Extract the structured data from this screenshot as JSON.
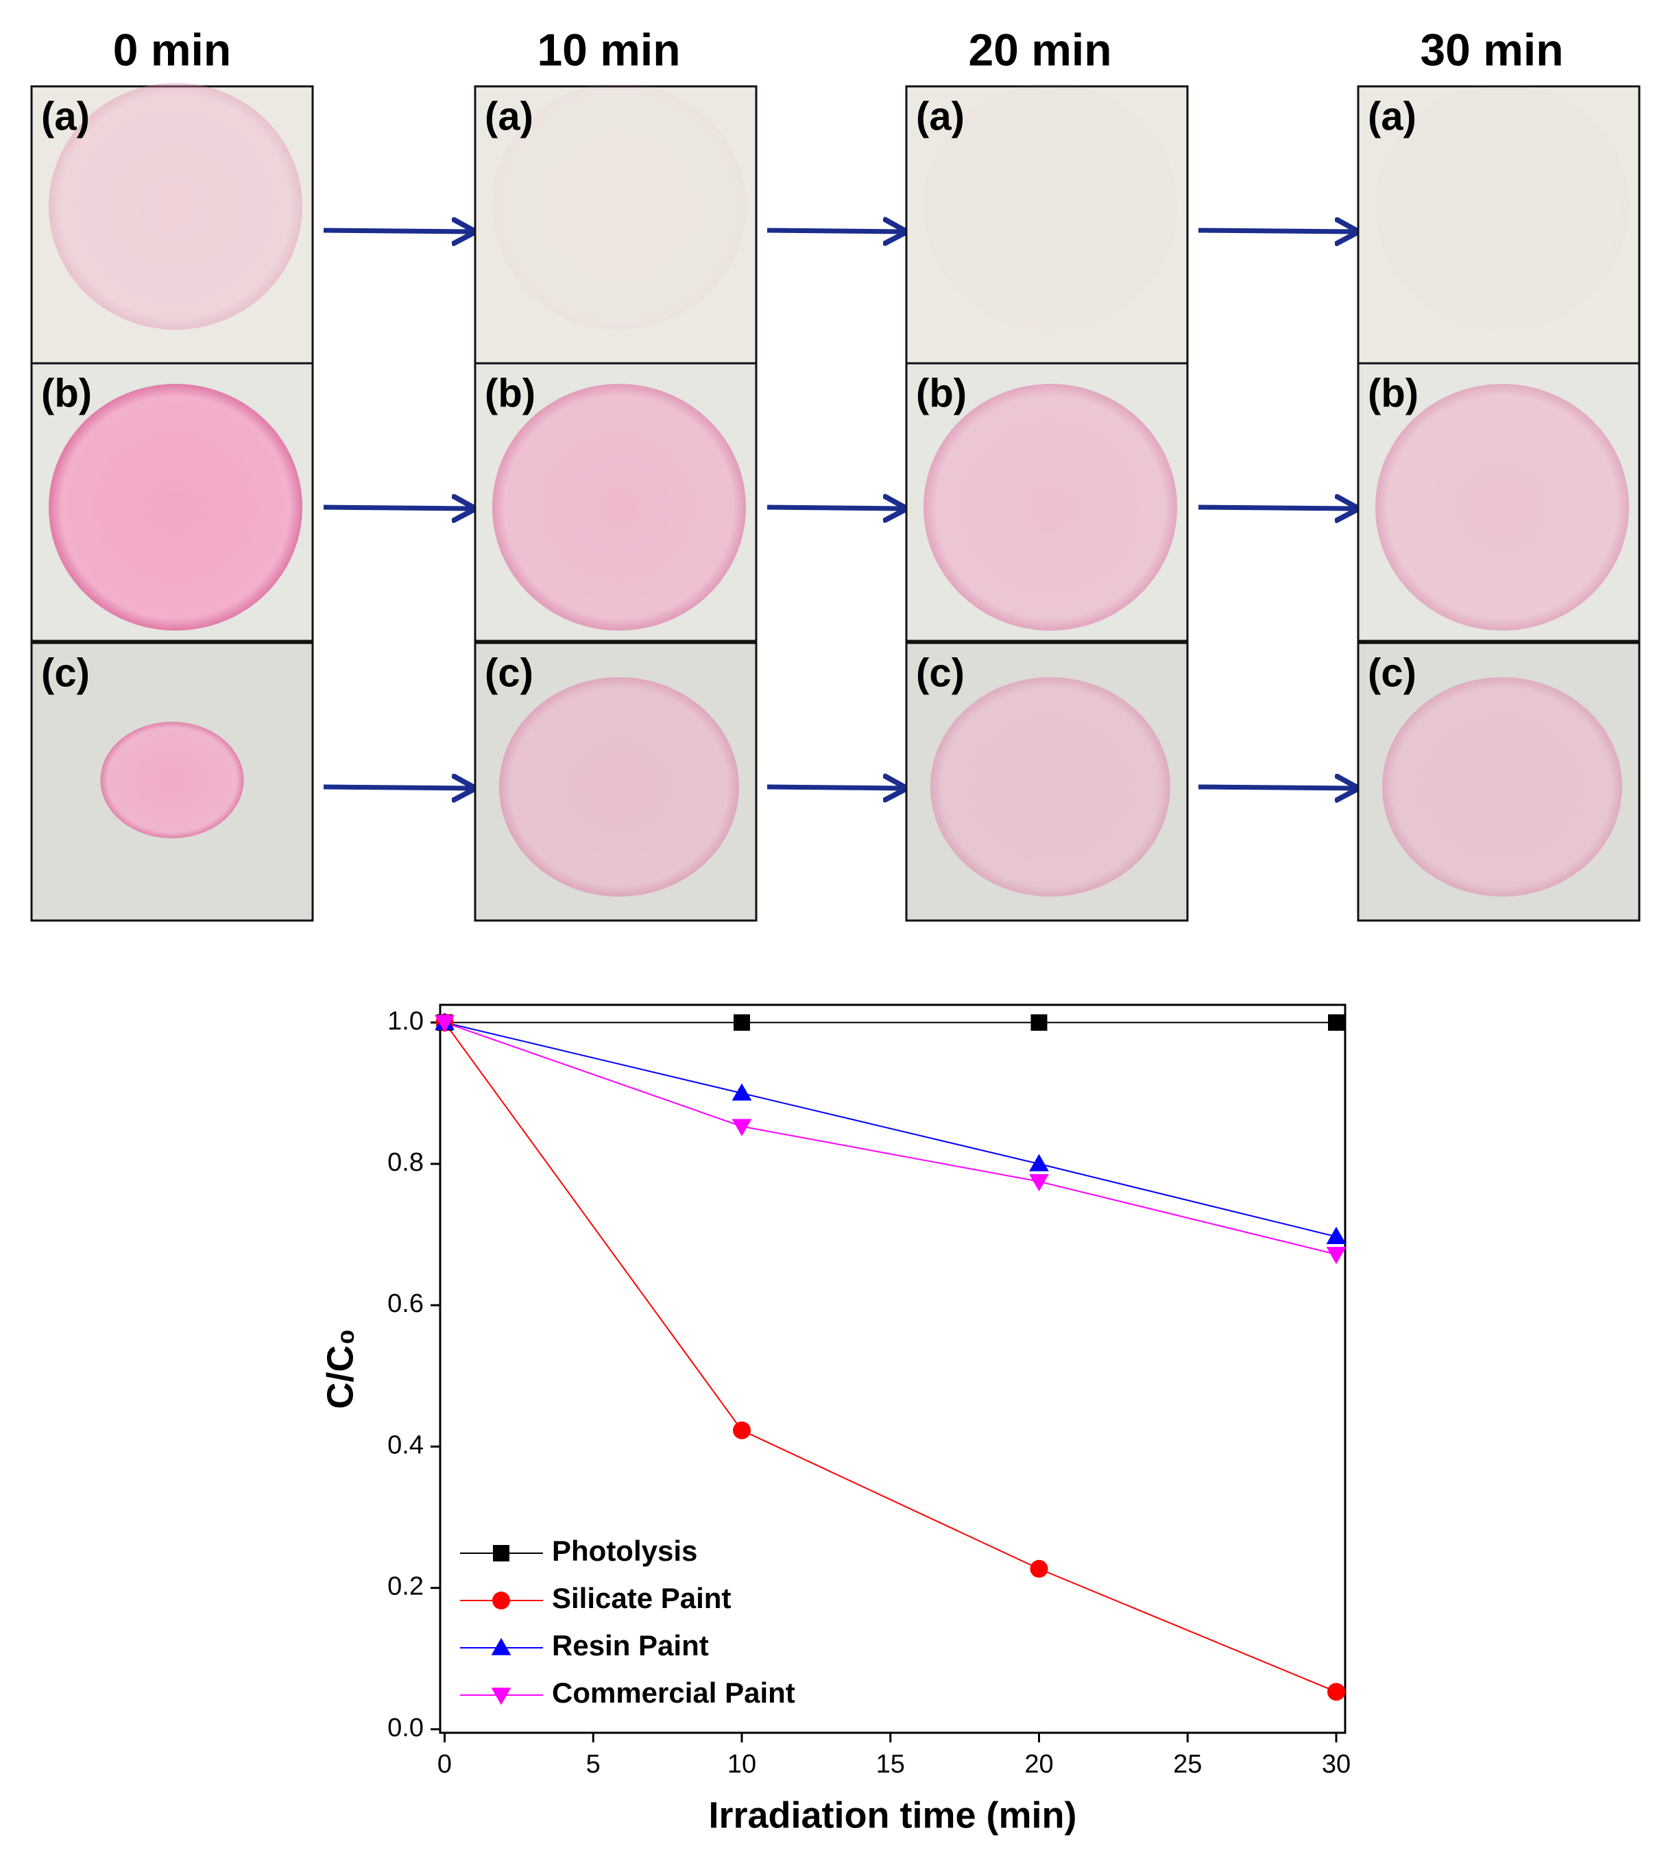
{
  "photo_grid": {
    "columns": [
      "0 min",
      "10 min",
      "20 min",
      "30 min"
    ],
    "rows": [
      "(a)",
      "(b)",
      "(c)"
    ]
  },
  "chart_data": {
    "type": "line",
    "xlabel": "Irradiation time (min)",
    "ylabel": "C/C₀",
    "x": [
      0,
      10,
      20,
      30
    ],
    "series": [
      {
        "name": "Photolysis",
        "color": "#000000",
        "marker": "square",
        "values": [
          1.0,
          1.0,
          1.0,
          1.0
        ]
      },
      {
        "name": "Silicate Paint",
        "color": "#ff0000",
        "marker": "circle",
        "values": [
          1.0,
          0.423,
          0.227,
          0.053
        ]
      },
      {
        "name": "Resin Paint",
        "color": "#0000ff",
        "marker": "triangle-up",
        "values": [
          1.0,
          0.9,
          0.8,
          0.697
        ]
      },
      {
        "name": "Commercial Paint",
        "color": "#ff00ff",
        "marker": "triangle-down",
        "values": [
          1.0,
          0.853,
          0.775,
          0.672
        ]
      }
    ],
    "xlim": [
      -0.15,
      30.3
    ],
    "ylim": [
      -0.005,
      1.025
    ],
    "xticks": [
      0,
      5,
      10,
      15,
      20,
      25,
      30
    ],
    "yticks": [
      {
        "value": 0,
        "label": "0.0"
      },
      0.2,
      0.4,
      0.6,
      0.8,
      {
        "value": 1,
        "label": "1.0"
      }
    ],
    "legend": "lower-left"
  }
}
